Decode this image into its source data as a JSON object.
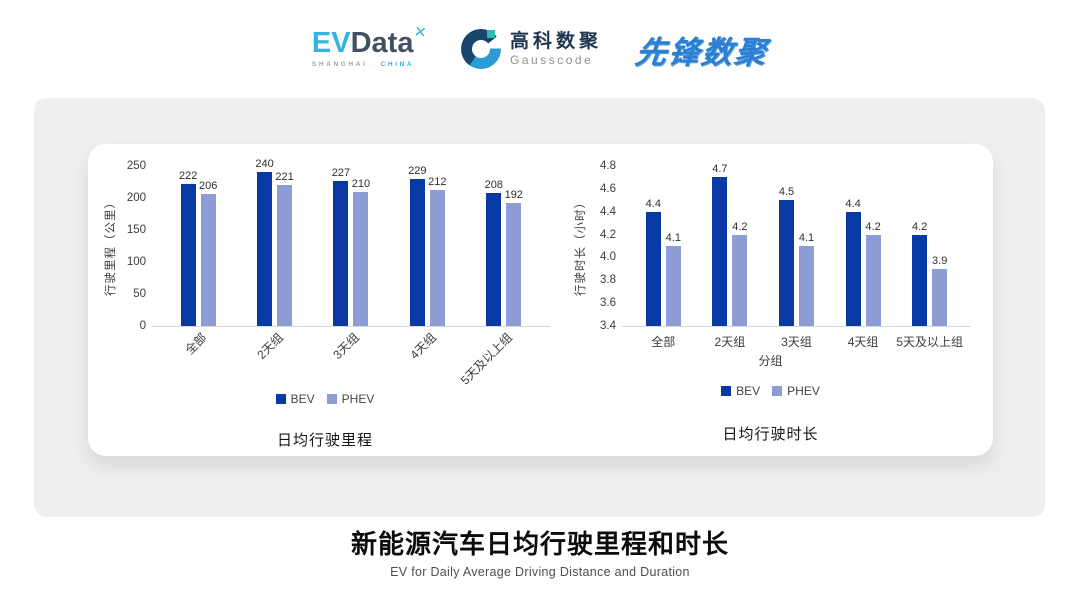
{
  "header": {
    "evdata_logo": {
      "ev": "EV",
      "data": "Data",
      "mark": "✕",
      "sub_left": "SHANGHAI",
      "sub_right": "CHINA"
    },
    "gausscode_logo": {
      "cn": "高科数聚",
      "en": "Gausscode"
    },
    "pioneer_logo": {
      "text": "先锋数聚"
    }
  },
  "chart_data": [
    {
      "type": "bar",
      "title": "日均行驶里程",
      "ylabel": "行驶里程（公里）",
      "xlabel": "",
      "categories": [
        "全部",
        "2天组",
        "3天组",
        "4天组",
        "5天及以上组"
      ],
      "series": [
        {
          "name": "BEV",
          "color": "#0839a4",
          "values": [
            222,
            240,
            227,
            229,
            208
          ]
        },
        {
          "name": "PHEV",
          "color": "#8e9cd6",
          "values": [
            206,
            221,
            210,
            212,
            192
          ]
        }
      ],
      "ylim": [
        0,
        250
      ],
      "yticks": [
        0,
        50,
        100,
        150,
        200,
        250
      ],
      "ytick_format": "int",
      "rotate_xticks": true,
      "grid": false,
      "legend_position": "bottom",
      "data_labels": true
    },
    {
      "type": "bar",
      "title": "日均行驶时长",
      "ylabel": "行驶时长（小时）",
      "xlabel": "分组",
      "categories": [
        "全部",
        "2天组",
        "3天组",
        "4天组",
        "5天及以上组"
      ],
      "series": [
        {
          "name": "BEV",
          "color": "#0839a4",
          "values": [
            4.4,
            4.7,
            4.5,
            4.4,
            4.2
          ]
        },
        {
          "name": "PHEV",
          "color": "#8e9cd6",
          "values": [
            4.1,
            4.2,
            4.1,
            4.2,
            3.9
          ]
        }
      ],
      "ylim": [
        3.4,
        4.8
      ],
      "yticks": [
        3.4,
        3.6,
        3.8,
        4.0,
        4.2,
        4.4,
        4.6,
        4.8
      ],
      "ytick_format": "one_decimal",
      "rotate_xticks": false,
      "grid": false,
      "legend_position": "bottom",
      "data_labels": true
    }
  ],
  "footer": {
    "title": "新能源汽车日均行驶里程和时长",
    "subtitle": "EV for Daily Average Driving Distance and Duration"
  },
  "colors": {
    "bev": "#0839a4",
    "phev": "#8e9cd6",
    "card_bg": "#efefef",
    "axis_line": "#d8d8d8",
    "tick_text": "#3c3c3c"
  }
}
